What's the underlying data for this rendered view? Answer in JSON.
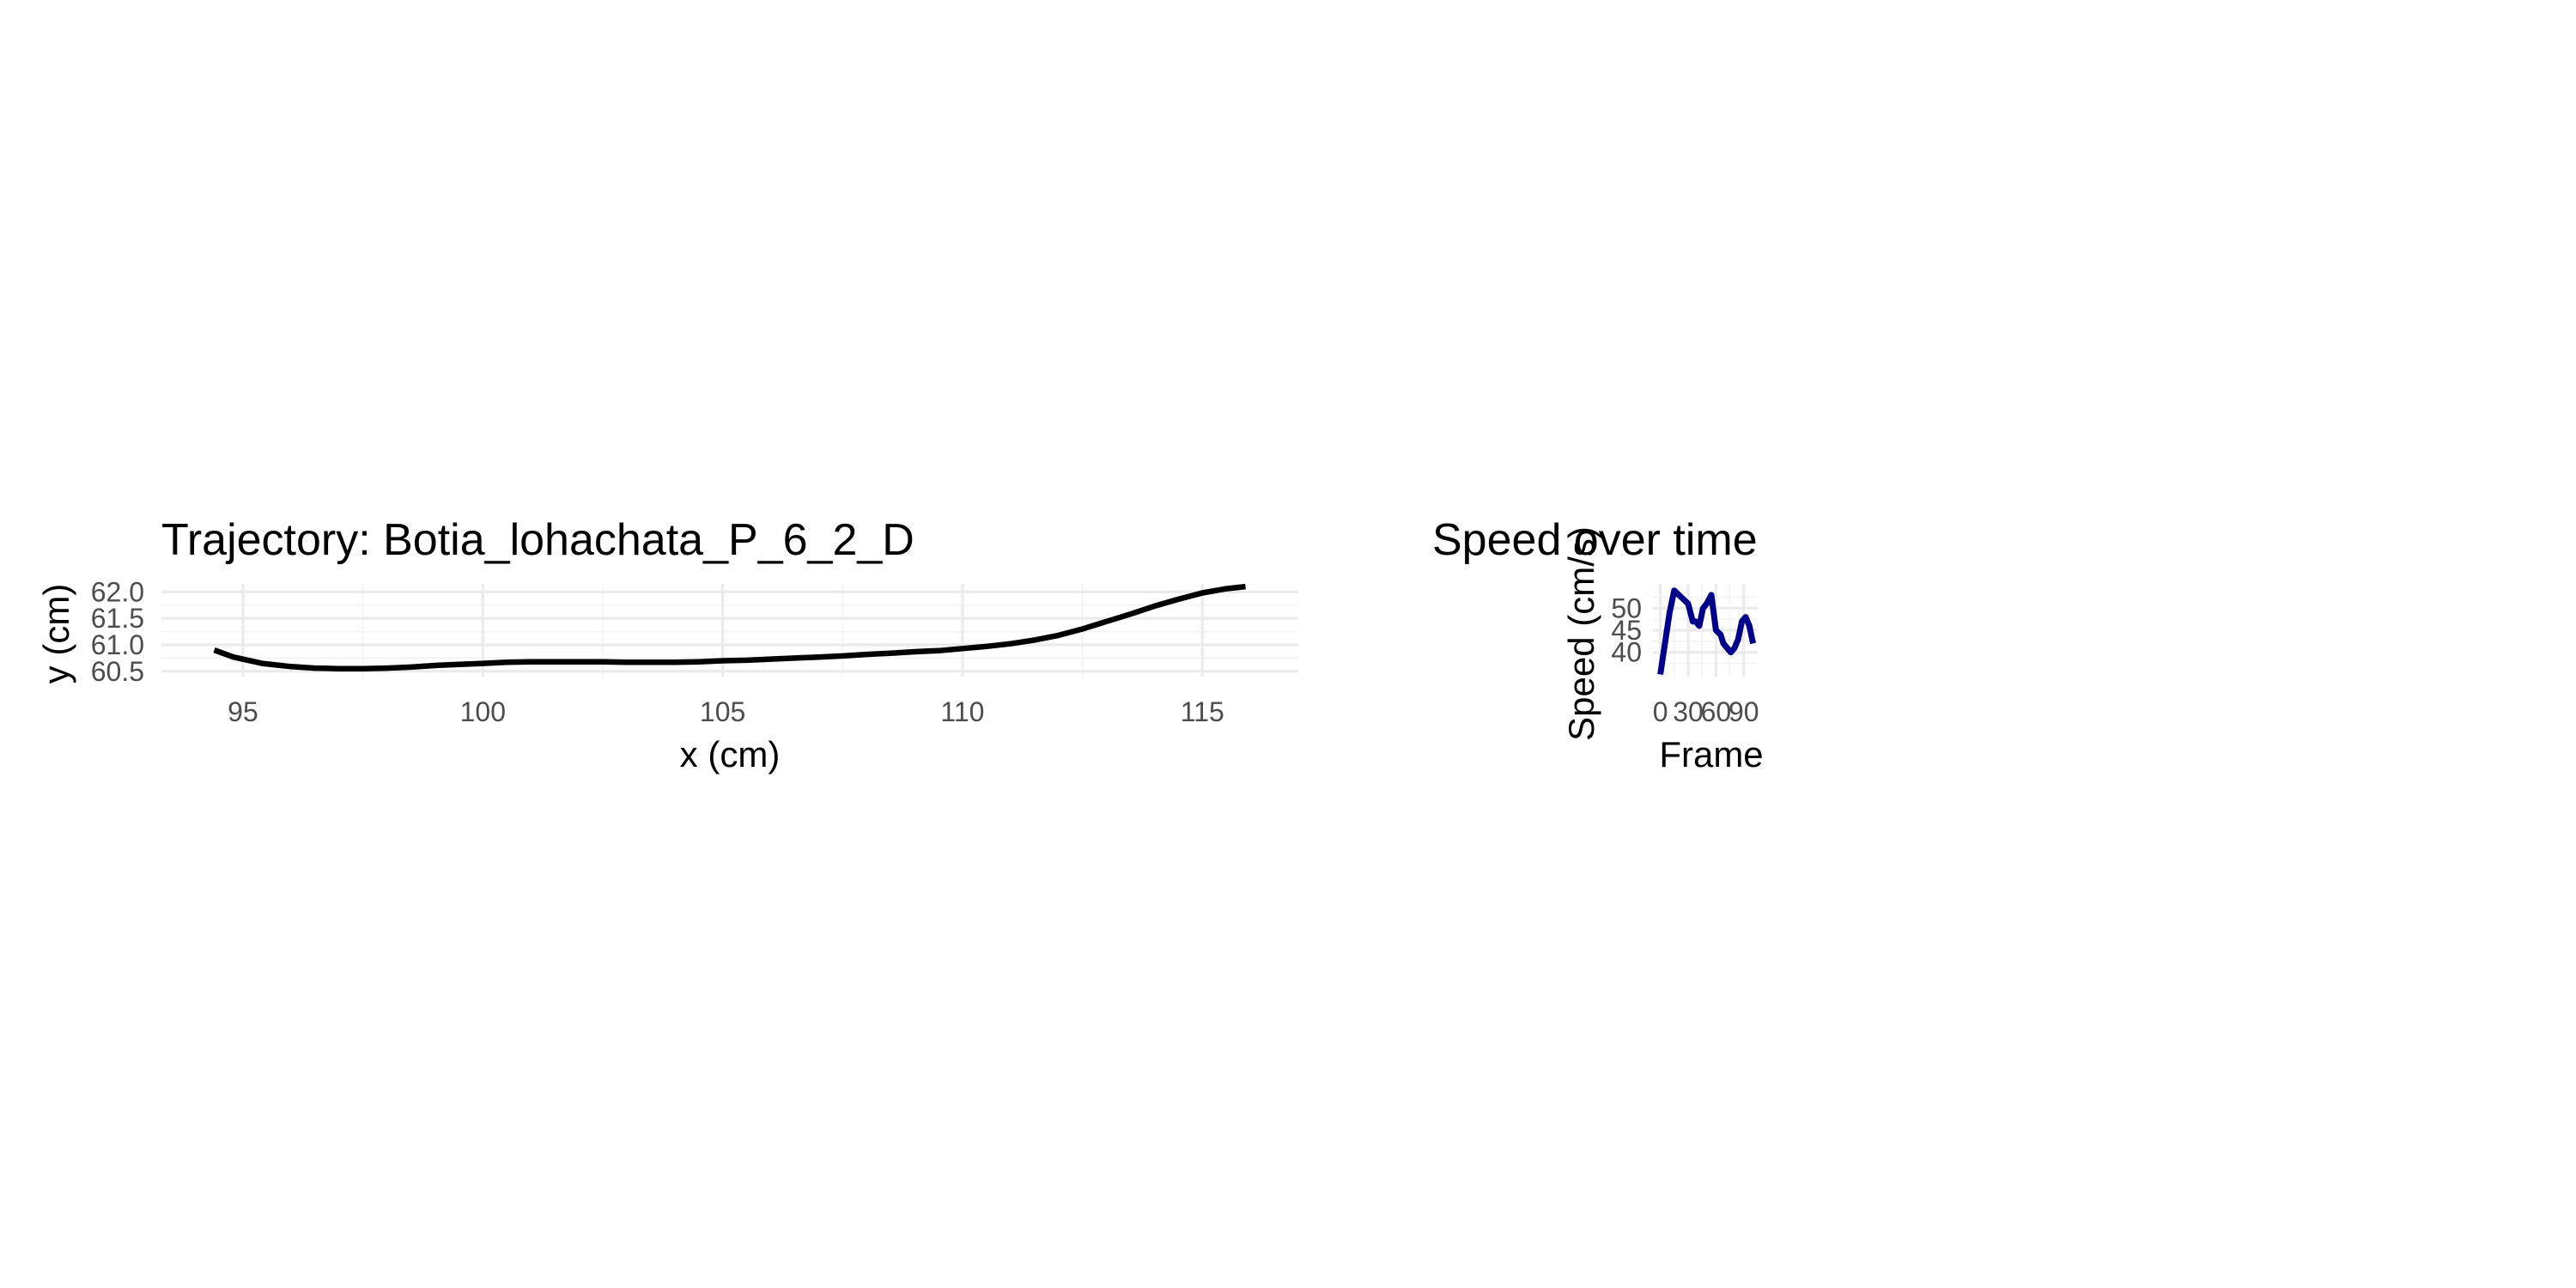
{
  "chart_data": [
    {
      "type": "line",
      "title": "Trajectory: Botia_lohachata_P_6_2_D",
      "xlabel": "x (cm)",
      "ylabel": "y (cm)",
      "xlim": [
        93.3,
        117.0
      ],
      "ylim": [
        60.4,
        62.15
      ],
      "x_ticks": [
        95,
        100,
        105,
        110,
        115
      ],
      "x_tick_labels": [
        "95",
        "100",
        "105",
        "110",
        "115"
      ],
      "y_ticks": [
        60.5,
        61.0,
        61.5,
        62.0
      ],
      "y_tick_labels": [
        "60.5",
        "61.0",
        "61.5",
        "62.0"
      ],
      "grid": true,
      "series": [
        {
          "color": "#000000",
          "x": [
            94.4,
            94.8,
            95.4,
            96.0,
            96.5,
            97.0,
            97.5,
            98.0,
            98.5,
            99.0,
            99.5,
            100.0,
            100.5,
            101.0,
            101.5,
            102.0,
            102.5,
            103.0,
            103.5,
            104.0,
            104.5,
            105.0,
            105.5,
            106.0,
            106.5,
            107.0,
            107.5,
            108.0,
            108.5,
            109.0,
            109.5,
            110.0,
            110.5,
            111.0,
            111.5,
            112.0,
            112.5,
            113.0,
            113.5,
            114.0,
            114.5,
            115.0,
            115.5,
            115.9
          ],
          "y": [
            60.9,
            60.77,
            60.65,
            60.59,
            60.56,
            60.55,
            60.55,
            60.56,
            60.58,
            60.61,
            60.63,
            60.65,
            60.67,
            60.68,
            60.68,
            60.68,
            60.68,
            60.67,
            60.67,
            60.67,
            60.68,
            60.7,
            60.71,
            60.73,
            60.75,
            60.77,
            60.79,
            60.82,
            60.84,
            60.87,
            60.89,
            60.93,
            60.97,
            61.02,
            61.09,
            61.18,
            61.3,
            61.44,
            61.58,
            61.73,
            61.86,
            61.98,
            62.06,
            62.1
          ]
        }
      ]
    },
    {
      "type": "line",
      "title": "Speed over time",
      "xlabel": "Frame",
      "ylabel": "Speed (cm/s)",
      "xlim": [
        -8,
        105
      ],
      "ylim": [
        34.5,
        55.5
      ],
      "x_ticks": [
        0,
        30,
        60,
        90
      ],
      "x_tick_labels": [
        "0",
        "30",
        "60",
        "90"
      ],
      "y_ticks": [
        40,
        45,
        50
      ],
      "y_tick_labels": [
        "40",
        "45",
        "50"
      ],
      "grid": true,
      "series": [
        {
          "color": "#00008b",
          "x": [
            0,
            5,
            10,
            15,
            20,
            25,
            30,
            35,
            38,
            42,
            46,
            50,
            55,
            60,
            65,
            68,
            72,
            76,
            80,
            84,
            88,
            92,
            96,
            100
          ],
          "y": [
            35,
            42,
            49,
            54,
            53,
            52,
            51,
            47,
            47,
            46,
            50,
            51,
            53,
            45,
            44,
            42,
            41,
            40,
            41,
            43,
            47,
            48,
            46,
            42
          ]
        }
      ]
    }
  ]
}
